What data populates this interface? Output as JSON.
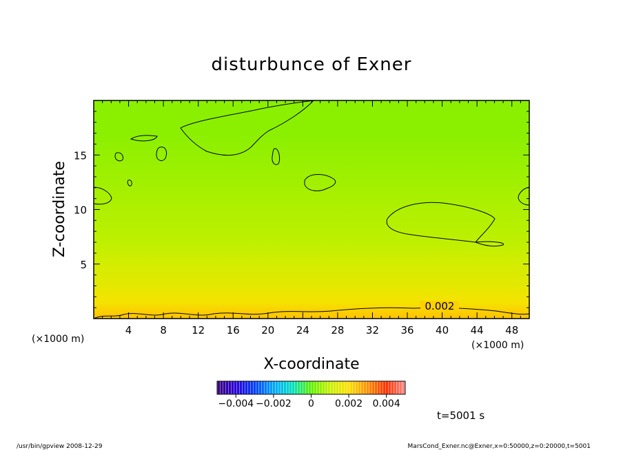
{
  "chart_data": {
    "type": "heatmap",
    "title": "disturbunce of Exner",
    "xlabel": "X-coordinate",
    "ylabel": "Z-coordinate",
    "x_unit": "(×1000 m)",
    "xlim": [
      0,
      50
    ],
    "ylim": [
      0,
      20
    ],
    "x_ticks": [
      4,
      8,
      12,
      16,
      20,
      24,
      28,
      32,
      36,
      40,
      44,
      48
    ],
    "y_ticks": [
      5,
      10,
      15
    ],
    "contour_label": "0.002",
    "colorbar": {
      "min": -0.005,
      "max": 0.005,
      "ticks": [
        "−0.004",
        "−0.002",
        "0",
        "0.002",
        "0.004"
      ],
      "tick_values": [
        -0.004,
        -0.002,
        0,
        0.002,
        0.004
      ]
    },
    "time_label": "t=5001 s",
    "field_rows_z": [
      0.3,
      1.5,
      3,
      5,
      7,
      9,
      11,
      13,
      15,
      17,
      19.5
    ],
    "field_row_values": [
      0.0023,
      0.0018,
      0.0015,
      0.0012,
      0.0009,
      0.0008,
      0.0007,
      0.0006,
      0.0005,
      0.0004,
      0.0004
    ],
    "footer_left": "/usr/bin/gpview   2008-12-29",
    "footer_right": "MarsCond_Exner.nc@Exner,x=0:50000,z=0:20000,t=5001"
  }
}
